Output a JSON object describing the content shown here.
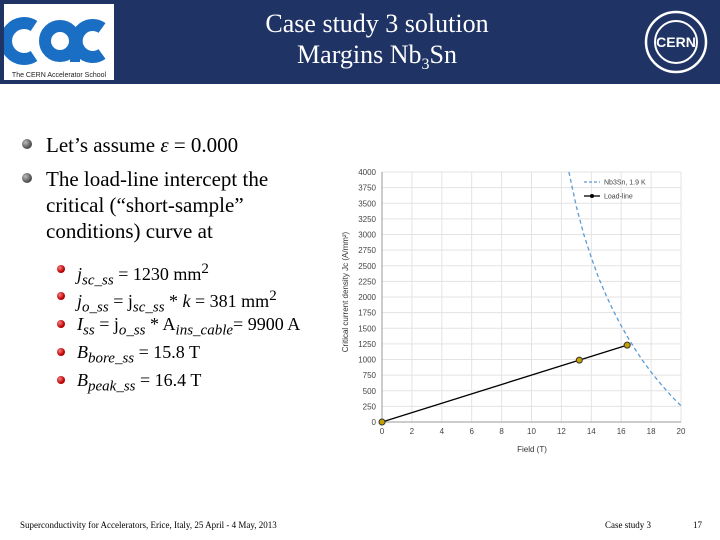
{
  "header": {
    "title_line1": "Case study 3 solution",
    "title_line2_pre": "Margins Nb",
    "title_line2_sub": "3",
    "title_line2_post": "Sn",
    "cas_logo_caption": "The CERN Accelerator School",
    "cern_logo_text": "CERN",
    "background_color": "#1f3364"
  },
  "bullets": {
    "b1_pre": "Let’s assume ",
    "b1_symbol": "ε",
    "b1_post": " = 0.000",
    "b2_line1": "The load-line intercept the",
    "b2_line2": "critical (“short-sample”",
    "b2_line3": "conditions) curve at"
  },
  "sub_bullets": {
    "s1_a": "j",
    "s1_b": "sc_ss",
    "s1_c": " = 1230 mm",
    "s1_d": "2",
    "s2_a": "j",
    "s2_b": "o_ss",
    "s2_c": " = j",
    "s2_d": "sc_ss",
    "s2_e": " * ",
    "s2_f": "k",
    "s2_g": " = 381 mm",
    "s2_h": "2",
    "s3_a": "I",
    "s3_b": "ss",
    "s3_c": " = j",
    "s3_d": "o_ss",
    "s3_e": " * A",
    "s3_f": "ins_cable",
    "s3_g": "= 9900 A",
    "s4_a": "B",
    "s4_b": "bore_ss",
    "s4_c": " = 15.8 T",
    "s5_a": "B",
    "s5_b": "peak_ss",
    "s5_c": " = 16.4 T"
  },
  "chart_data": {
    "type": "line",
    "xlabel": "Field (T)",
    "ylabel": "Critical current density Jc (A/mm²)",
    "xlim": [
      0,
      20
    ],
    "ylim": [
      0,
      4000
    ],
    "xticks": [
      0,
      2,
      4,
      6,
      8,
      10,
      12,
      14,
      16,
      18,
      20
    ],
    "yticks": [
      0,
      250,
      500,
      750,
      1000,
      1250,
      1500,
      1750,
      2000,
      2250,
      2500,
      2750,
      3000,
      3250,
      3500,
      3750,
      4000
    ],
    "grid": true,
    "legend_position": "top-right",
    "series": [
      {
        "name": "Nb3Sn, 1.9 K",
        "style": "dashed",
        "color": "#5b9bd5",
        "x": [
          12.5,
          13,
          13.5,
          14,
          14.5,
          15,
          15.5,
          16,
          16.5,
          17,
          17.5,
          18,
          18.5,
          19,
          19.5,
          20
        ],
        "y": [
          4000,
          3450,
          3000,
          2630,
          2300,
          2020,
          1770,
          1540,
          1330,
          1140,
          960,
          800,
          650,
          510,
          380,
          260
        ]
      },
      {
        "name": "Load-line",
        "style": "solid",
        "color": "#000000",
        "x": [
          0,
          13.2,
          16.4
        ],
        "y": [
          0,
          990,
          1230
        ]
      }
    ],
    "markers": [
      {
        "x": 0,
        "y": 0,
        "color": "#c8a000"
      },
      {
        "x": 13.2,
        "y": 990,
        "color": "#c8a000"
      },
      {
        "x": 16.4,
        "y": 1230,
        "color": "#c8a000"
      }
    ]
  },
  "footer": {
    "left": "Superconductivity for Accelerators, Erice, Italy, 25 April - 4 May, 2013",
    "middle": "Case study 3",
    "page": "17"
  }
}
